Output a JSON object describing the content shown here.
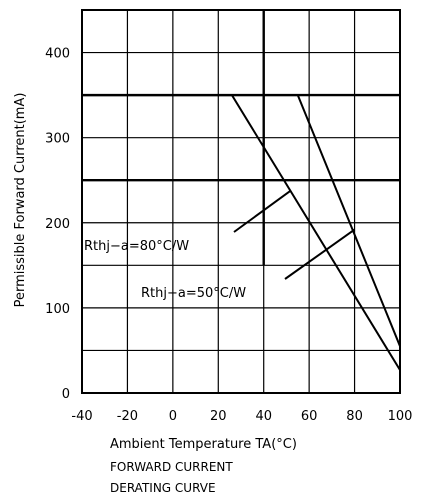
{
  "chart_data": {
    "type": "line",
    "title": "FORWARD CURRENT",
    "subtitle": "DERATING CURVE",
    "xlabel": "Ambient Temperature TA(°C)",
    "ylabel": "Permissible Forward Current(mA)",
    "xlim": [
      -40,
      100
    ],
    "ylim": [
      0,
      450
    ],
    "xticks": [
      -40,
      -20,
      0,
      20,
      40,
      60,
      80,
      100
    ],
    "yticks": [
      0,
      100,
      200,
      300,
      400
    ],
    "grid": true,
    "series": [
      {
        "name": "Rthj−a=80°C/W",
        "x": [
          -40,
          26,
          100
        ],
        "y": [
          350,
          350,
          27
        ]
      },
      {
        "name": "Rthj−a=50°C/W",
        "x": [
          -40,
          55,
          100
        ],
        "y": [
          350,
          350,
          55
        ]
      }
    ],
    "reference_lines": {
      "h": [
        350,
        250
      ],
      "v": [
        40
      ]
    }
  }
}
